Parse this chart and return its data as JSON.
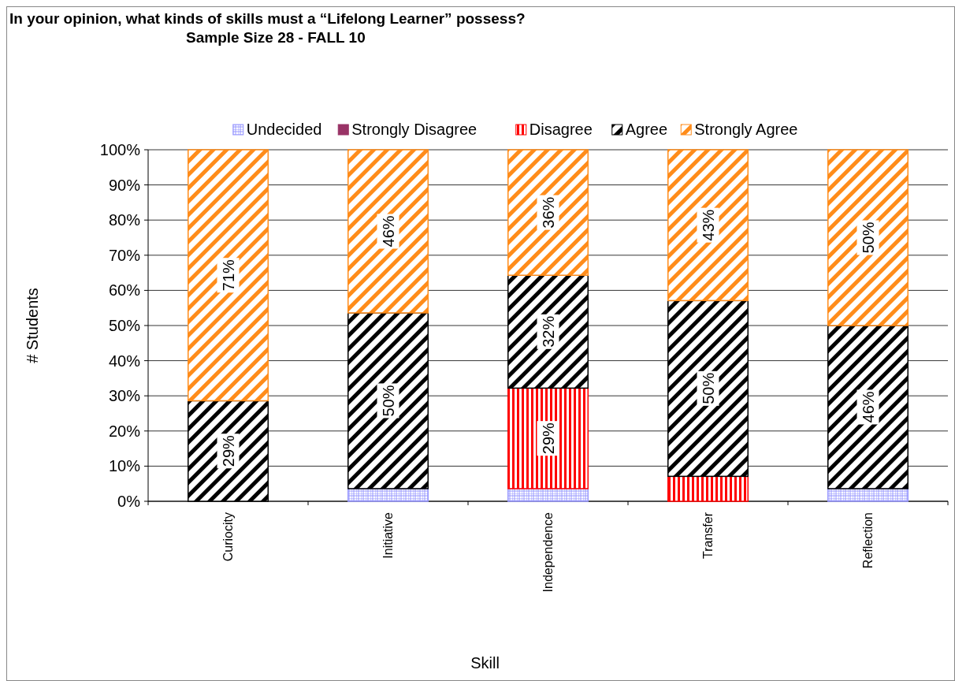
{
  "chart_data": {
    "type": "bar",
    "stacked": true,
    "title": "In your opinion, what kinds of skills must a “Lifelong Learner” possess?",
    "subtitle": "Sample  Size  28  - FALL 10",
    "xlabel": "Skill",
    "ylabel": "# Students",
    "categories": [
      "Curiocity",
      "Initiative",
      "Independence",
      "Transfer",
      "Reflection"
    ],
    "series": [
      {
        "name": "Undecided",
        "color": "#9999ff",
        "values": [
          0,
          3.6,
          3.6,
          0,
          3.6
        ],
        "value_labels": [
          null,
          null,
          null,
          null,
          null
        ]
      },
      {
        "name": "Strongly Disagree",
        "color": "#993366",
        "values": [
          0,
          0,
          0,
          0,
          0
        ],
        "value_labels": [
          null,
          null,
          null,
          null,
          null
        ]
      },
      {
        "name": "Disagree",
        "color": "#ff0000",
        "values": [
          0,
          0,
          28.6,
          7.1,
          0
        ],
        "value_labels": [
          null,
          null,
          "29%",
          null,
          null
        ]
      },
      {
        "name": "Agree",
        "color": "#000000",
        "values": [
          28.6,
          50,
          32.1,
          50,
          46.4
        ],
        "value_labels": [
          "29%",
          "50%",
          "32%",
          "50%",
          "46%"
        ]
      },
      {
        "name": "Strongly Agree",
        "color": "#ff8c1a",
        "values": [
          71.4,
          46.4,
          35.7,
          42.9,
          50
        ],
        "value_labels": [
          "71%",
          "46%",
          "36%",
          "43%",
          "50%"
        ]
      }
    ],
    "ylim": [
      0,
      100
    ],
    "yticks": [
      {
        "value": 0,
        "label": "0%"
      },
      {
        "value": 10,
        "label": "10%"
      },
      {
        "value": 20,
        "label": "20%"
      },
      {
        "value": 30,
        "label": "30%"
      },
      {
        "value": 40,
        "label": "40%"
      },
      {
        "value": 50,
        "label": "50%"
      },
      {
        "value": 60,
        "label": "60%"
      },
      {
        "value": 70,
        "label": "70%"
      },
      {
        "value": 80,
        "label": "80%"
      },
      {
        "value": 90,
        "label": "90%"
      },
      {
        "value": 100,
        "label": "100%"
      }
    ],
    "grid": "y",
    "legend": "top"
  }
}
